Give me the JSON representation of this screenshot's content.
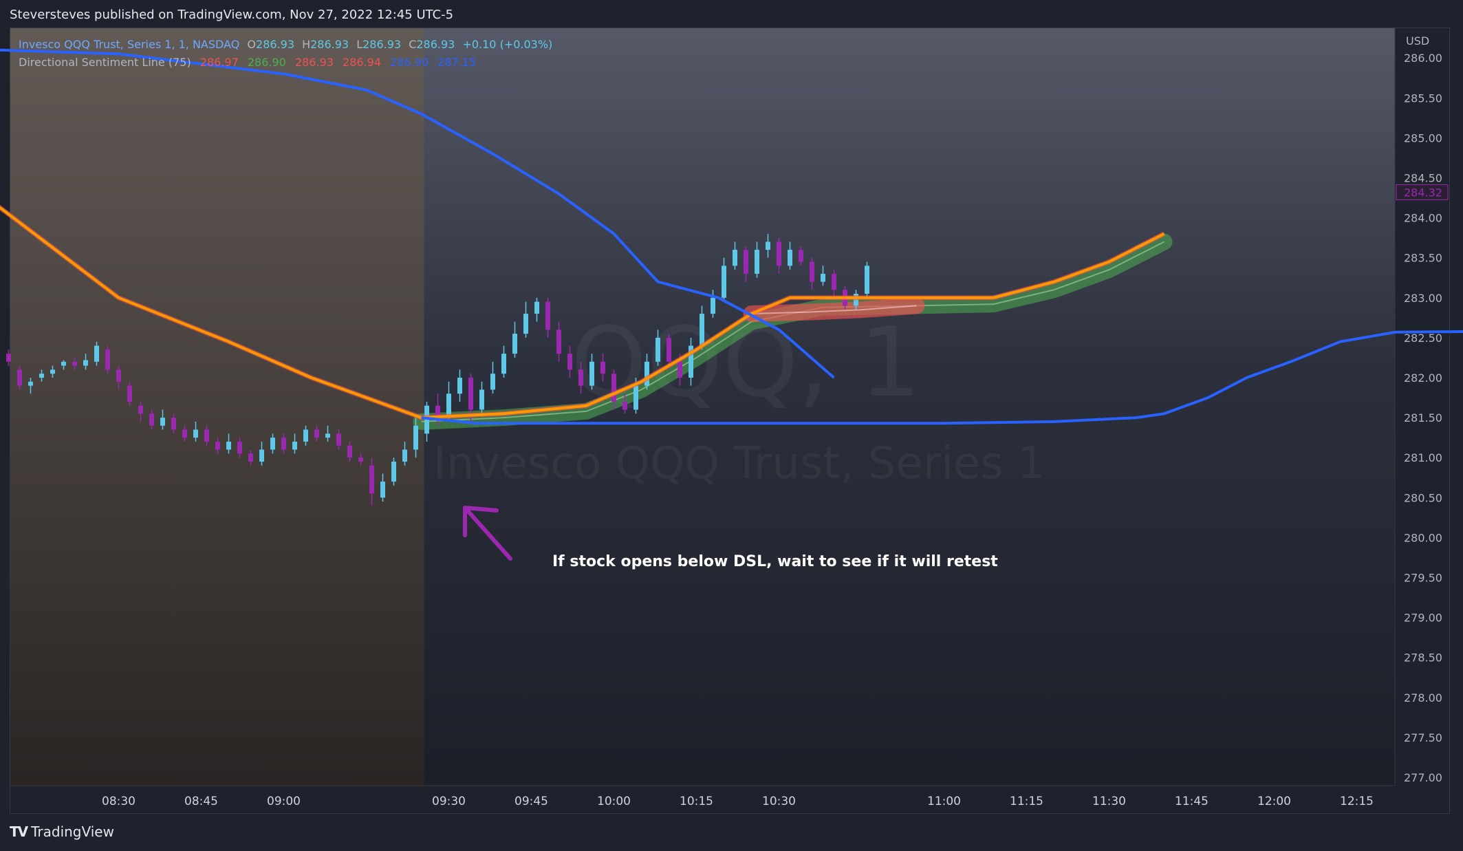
{
  "header": {
    "published_text": "Steversteves published on TradingView.com, Nov 27, 2022 12:45 UTC-5"
  },
  "legend": {
    "title": "Invesco QQQ Trust, Series 1, 1, NASDAQ",
    "o_label": "O",
    "o_value": "286.93",
    "h_label": "H",
    "h_value": "286.93",
    "l_label": "L",
    "l_value": "286.93",
    "c_label": "C",
    "c_value": "286.93",
    "change": "+0.10 (+0.03%)",
    "indicator": "Directional Sentiment Line (75)",
    "ind_values": [
      "286.97",
      "286.90",
      "286.93",
      "286.94",
      "286.90",
      "287.15"
    ]
  },
  "currency": "USD",
  "annotation": "If stock opens below DSL, wait to see if it will retest",
  "watermark": {
    "symbol": "QQQ, 1",
    "name": "Invesco QQQ Trust, Series 1"
  },
  "footer": {
    "brand": "TradingView",
    "logo_icon": "tradingview-logo-icon"
  },
  "colors": {
    "bull": "#5ec8e8",
    "bear": "#9c27b0",
    "blue_line": "#2962ff",
    "orange_line": "#ff9800",
    "green_band": "#4caf50",
    "red_band": "#f05252",
    "premarket_bg": "#5a5048",
    "session_bg": "#262b38"
  },
  "chart_data": {
    "type": "candlestick",
    "xlabel": "",
    "ylabel": "",
    "ylim": [
      277.0,
      286.0
    ],
    "x_ticks": [
      "08:30",
      "08:45",
      "09:00",
      "09:30",
      "09:45",
      "10:00",
      "10:15",
      "10:30",
      "11:00",
      "11:15",
      "11:30",
      "11:45",
      "12:00",
      "12:15"
    ],
    "y_ticks": [
      "286.00",
      "285.50",
      "285.00",
      "284.50",
      "284.00",
      "283.50",
      "283.00",
      "282.50",
      "282.00",
      "281.50",
      "281.00",
      "280.50",
      "280.00",
      "279.50",
      "279.00",
      "278.50",
      "278.00",
      "277.50",
      "277.00"
    ],
    "last_price_label": "284.32",
    "time_range_minutes": [
      8,
      240
    ],
    "premarket_end_minute": 85.5,
    "series": [
      {
        "name": "Upper line",
        "color": "#2962ff",
        "points": [
          [
            8,
            286.1
          ],
          [
            30,
            286.05
          ],
          [
            60,
            285.8
          ],
          [
            75,
            285.6
          ],
          [
            85,
            285.3
          ],
          [
            98,
            284.8
          ],
          [
            110,
            284.3
          ],
          [
            120,
            283.8
          ],
          [
            128,
            283.2
          ],
          [
            139,
            283.0
          ],
          [
            150,
            282.6
          ],
          [
            155,
            282.3
          ],
          [
            160,
            282.0
          ]
        ]
      },
      {
        "name": "Lower line",
        "color": "#2962ff",
        "points": [
          [
            85,
            281.5
          ],
          [
            95,
            281.43
          ],
          [
            130,
            281.43
          ],
          [
            180,
            281.43
          ],
          [
            200,
            281.45
          ],
          [
            215,
            281.5
          ],
          [
            220,
            281.55
          ],
          [
            228,
            281.75
          ],
          [
            235,
            282.0
          ],
          [
            243,
            282.2
          ],
          [
            252,
            282.45
          ],
          [
            262,
            282.57
          ],
          [
            280,
            282.58
          ]
        ]
      },
      {
        "name": "Orange line",
        "color": "#ff9800",
        "points": [
          [
            8,
            284.15
          ],
          [
            30,
            283.0
          ],
          [
            50,
            282.45
          ],
          [
            65,
            282.0
          ],
          [
            85,
            281.5
          ],
          [
            100,
            281.55
          ],
          [
            115,
            281.65
          ],
          [
            125,
            281.95
          ],
          [
            135,
            282.35
          ],
          [
            145,
            282.8
          ],
          [
            152,
            283.0
          ],
          [
            165,
            283.0
          ],
          [
            189,
            283.0
          ],
          [
            200,
            283.2
          ],
          [
            210,
            283.45
          ],
          [
            220,
            283.8
          ]
        ]
      },
      {
        "name": "Green band",
        "color": "#4caf50",
        "points": [
          [
            85,
            281.45
          ],
          [
            100,
            281.5
          ],
          [
            115,
            281.58
          ],
          [
            125,
            281.85
          ],
          [
            135,
            282.25
          ],
          [
            145,
            282.7
          ],
          [
            158,
            282.88
          ],
          [
            175,
            282.9
          ],
          [
            189,
            282.92
          ],
          [
            200,
            283.1
          ],
          [
            210,
            283.35
          ],
          [
            220,
            283.7
          ]
        ]
      },
      {
        "name": "Red band",
        "color": "#f05252",
        "points": [
          [
            145,
            282.8
          ],
          [
            155,
            282.82
          ],
          [
            165,
            282.85
          ],
          [
            175,
            282.9
          ]
        ]
      }
    ],
    "candles": [
      [
        8,
        282.34,
        282.3,
        282.4,
        282.22
      ],
      [
        10,
        282.3,
        282.2,
        282.35,
        282.15
      ],
      [
        12,
        282.1,
        281.9,
        282.15,
        281.85
      ],
      [
        14,
        281.9,
        281.95,
        282.0,
        281.8
      ],
      [
        16,
        282.0,
        282.05,
        282.1,
        281.95
      ],
      [
        18,
        282.05,
        282.1,
        282.15,
        282.0
      ],
      [
        20,
        282.15,
        282.2,
        282.22,
        282.1
      ],
      [
        22,
        282.2,
        282.15,
        282.25,
        282.1
      ],
      [
        24,
        282.15,
        282.22,
        282.3,
        282.1
      ],
      [
        26,
        282.2,
        282.4,
        282.45,
        282.15
      ],
      [
        28,
        282.35,
        282.1,
        282.4,
        282.05
      ],
      [
        30,
        282.1,
        281.95,
        282.15,
        281.85
      ],
      [
        32,
        281.9,
        281.7,
        281.95,
        281.65
      ],
      [
        34,
        281.65,
        281.55,
        281.7,
        281.45
      ],
      [
        36,
        281.55,
        281.4,
        281.6,
        281.35
      ],
      [
        38,
        281.4,
        281.5,
        281.6,
        281.35
      ],
      [
        40,
        281.5,
        281.35,
        281.55,
        281.3
      ],
      [
        42,
        281.35,
        281.25,
        281.4,
        281.2
      ],
      [
        44,
        281.25,
        281.35,
        281.45,
        281.2
      ],
      [
        46,
        281.35,
        281.2,
        281.4,
        281.15
      ],
      [
        48,
        281.2,
        281.1,
        281.25,
        281.05
      ],
      [
        50,
        281.1,
        281.2,
        281.3,
        281.05
      ],
      [
        52,
        281.2,
        281.05,
        281.25,
        281.0
      ],
      [
        54,
        281.05,
        280.95,
        281.1,
        280.9
      ],
      [
        56,
        280.95,
        281.1,
        281.2,
        280.9
      ],
      [
        58,
        281.1,
        281.25,
        281.3,
        281.05
      ],
      [
        60,
        281.25,
        281.1,
        281.3,
        281.05
      ],
      [
        62,
        281.1,
        281.2,
        281.3,
        281.05
      ],
      [
        64,
        281.2,
        281.35,
        281.4,
        281.15
      ],
      [
        66,
        281.35,
        281.25,
        281.4,
        281.2
      ],
      [
        68,
        281.25,
        281.3,
        281.4,
        281.2
      ],
      [
        70,
        281.3,
        281.15,
        281.35,
        281.1
      ],
      [
        72,
        281.15,
        281.0,
        281.2,
        280.95
      ],
      [
        74,
        281.0,
        280.95,
        281.05,
        280.9
      ],
      [
        76,
        280.9,
        280.55,
        281.0,
        280.4
      ],
      [
        78,
        280.5,
        280.7,
        280.8,
        280.45
      ],
      [
        80,
        280.7,
        280.95,
        281.0,
        280.65
      ],
      [
        82,
        280.95,
        281.1,
        281.2,
        280.9
      ],
      [
        84,
        281.1,
        281.4,
        281.5,
        281.0
      ],
      [
        86,
        281.3,
        281.65,
        281.7,
        281.2
      ],
      [
        88,
        281.65,
        281.5,
        281.8,
        281.4
      ],
      [
        90,
        281.5,
        281.8,
        281.95,
        281.45
      ],
      [
        92,
        281.8,
        282.0,
        282.1,
        281.7
      ],
      [
        94,
        282.0,
        281.6,
        282.05,
        281.45
      ],
      [
        96,
        281.6,
        281.85,
        281.95,
        281.55
      ],
      [
        98,
        281.85,
        282.05,
        282.2,
        281.8
      ],
      [
        100,
        282.05,
        282.3,
        282.4,
        282.0
      ],
      [
        102,
        282.3,
        282.55,
        282.7,
        282.25
      ],
      [
        104,
        282.55,
        282.8,
        282.95,
        282.5
      ],
      [
        106,
        282.8,
        282.95,
        283.0,
        282.7
      ],
      [
        108,
        282.95,
        282.6,
        283.0,
        282.5
      ],
      [
        110,
        282.6,
        282.3,
        282.7,
        282.2
      ],
      [
        112,
        282.3,
        282.1,
        282.4,
        282.0
      ],
      [
        114,
        282.1,
        281.9,
        282.2,
        281.8
      ],
      [
        116,
        281.9,
        282.2,
        282.3,
        281.85
      ],
      [
        118,
        282.2,
        282.05,
        282.3,
        281.95
      ],
      [
        120,
        282.05,
        281.7,
        282.1,
        281.6
      ],
      [
        122,
        281.7,
        281.6,
        281.8,
        281.55
      ],
      [
        124,
        281.6,
        281.9,
        282.0,
        281.55
      ],
      [
        126,
        281.9,
        282.2,
        282.3,
        281.85
      ],
      [
        128,
        282.2,
        282.5,
        282.6,
        282.15
      ],
      [
        130,
        282.5,
        282.2,
        282.55,
        282.1
      ],
      [
        132,
        282.2,
        282.0,
        282.3,
        281.9
      ],
      [
        134,
        282.0,
        282.4,
        282.5,
        281.9
      ],
      [
        136,
        282.4,
        282.8,
        282.9,
        282.35
      ],
      [
        138,
        282.8,
        283.0,
        283.1,
        282.75
      ],
      [
        140,
        283.0,
        283.4,
        283.5,
        282.95
      ],
      [
        142,
        283.4,
        283.6,
        283.7,
        283.35
      ],
      [
        144,
        283.6,
        283.3,
        283.65,
        283.2
      ],
      [
        146,
        283.3,
        283.6,
        283.7,
        283.25
      ],
      [
        148,
        283.6,
        283.7,
        283.8,
        283.5
      ],
      [
        150,
        283.7,
        283.4,
        283.75,
        283.3
      ],
      [
        152,
        283.4,
        283.6,
        283.7,
        283.35
      ],
      [
        154,
        283.6,
        283.45,
        283.65,
        283.4
      ],
      [
        156,
        283.45,
        283.2,
        283.5,
        283.1
      ],
      [
        158,
        283.2,
        283.3,
        283.4,
        283.15
      ],
      [
        160,
        283.3,
        283.1,
        283.35,
        283.0
      ],
      [
        162,
        283.1,
        282.9,
        283.15,
        282.85
      ],
      [
        164,
        282.9,
        283.05,
        283.1,
        282.85
      ],
      [
        166,
        283.05,
        283.4,
        283.45,
        283.0
      ]
    ]
  }
}
